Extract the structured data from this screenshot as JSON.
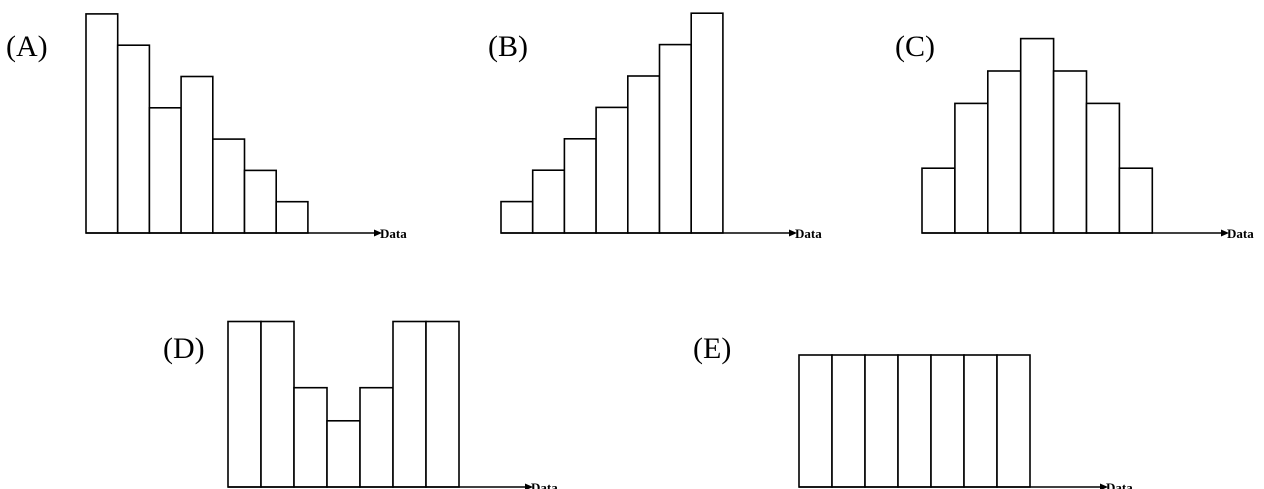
{
  "chart_data": [
    {
      "type": "bar",
      "label": "(A)",
      "xlabel": "Data",
      "values": [
        7,
        6,
        4,
        5,
        3,
        2,
        1
      ]
    },
    {
      "type": "bar",
      "label": "(B)",
      "xlabel": "Data",
      "values": [
        1,
        2,
        3,
        4,
        5,
        6,
        7
      ]
    },
    {
      "type": "bar",
      "label": "(C)",
      "xlabel": "Data",
      "values": [
        2,
        4,
        5,
        6,
        5,
        4,
        2
      ]
    },
    {
      "type": "bar",
      "label": "(D)",
      "xlabel": "Data",
      "values": [
        5,
        5,
        3,
        2,
        3,
        5,
        5
      ]
    },
    {
      "type": "bar",
      "label": "(E)",
      "xlabel": "Data",
      "values": [
        4,
        4,
        4,
        4,
        4,
        4,
        4
      ]
    }
  ],
  "colors": {
    "stroke": "#000000",
    "fill": "#ffffff"
  }
}
